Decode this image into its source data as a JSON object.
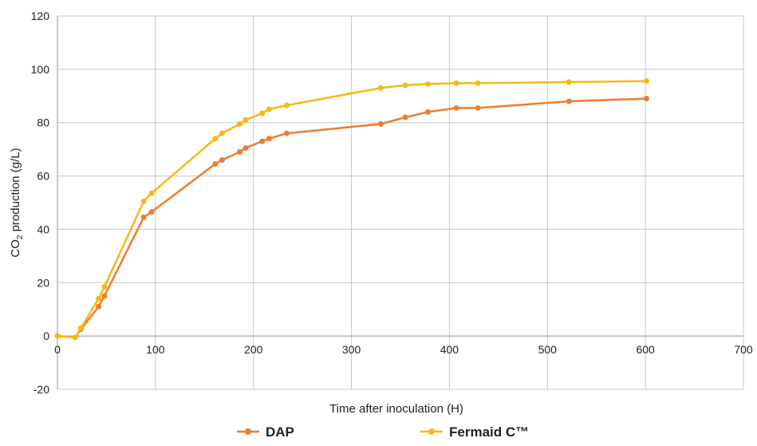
{
  "chart_data": {
    "type": "line",
    "xlabel": "Time after inoculation (H)",
    "ylabel_main": "CO",
    "ylabel_sub": "2",
    "ylabel_rest": " production (g/L)",
    "xlim": [
      0,
      700
    ],
    "ylim": [
      -20,
      120
    ],
    "xticks": [
      0,
      100,
      200,
      300,
      400,
      500,
      600,
      700
    ],
    "yticks": [
      -20,
      0,
      20,
      40,
      60,
      80,
      100,
      120
    ],
    "grid": true,
    "legend_position": "bottom",
    "series": [
      {
        "name": "DAP",
        "color": "#ed7d31",
        "x": [
          0,
          18,
          24,
          42,
          48,
          88,
          96,
          161,
          168,
          186,
          192,
          209,
          216,
          234,
          330,
          355,
          378,
          407,
          429,
          522,
          601
        ],
        "y": [
          0,
          -0.5,
          2.5,
          11,
          15,
          44.5,
          46.5,
          64.5,
          66,
          69,
          70.5,
          73,
          74,
          76,
          79.5,
          82,
          84,
          85.5,
          85.5,
          88,
          89
        ]
      },
      {
        "name": "Fermaid C™",
        "color": "#f5b915",
        "x": [
          0,
          18,
          24,
          42,
          48,
          88,
          96,
          161,
          168,
          186,
          192,
          209,
          216,
          234,
          330,
          355,
          378,
          407,
          429,
          522,
          601
        ],
        "y": [
          0,
          -0.5,
          3,
          14,
          18.5,
          50.5,
          53.5,
          74,
          76,
          79.5,
          81,
          83.5,
          85,
          86.5,
          93,
          94,
          94.5,
          94.8,
          94.8,
          95.2,
          95.6
        ]
      }
    ]
  }
}
